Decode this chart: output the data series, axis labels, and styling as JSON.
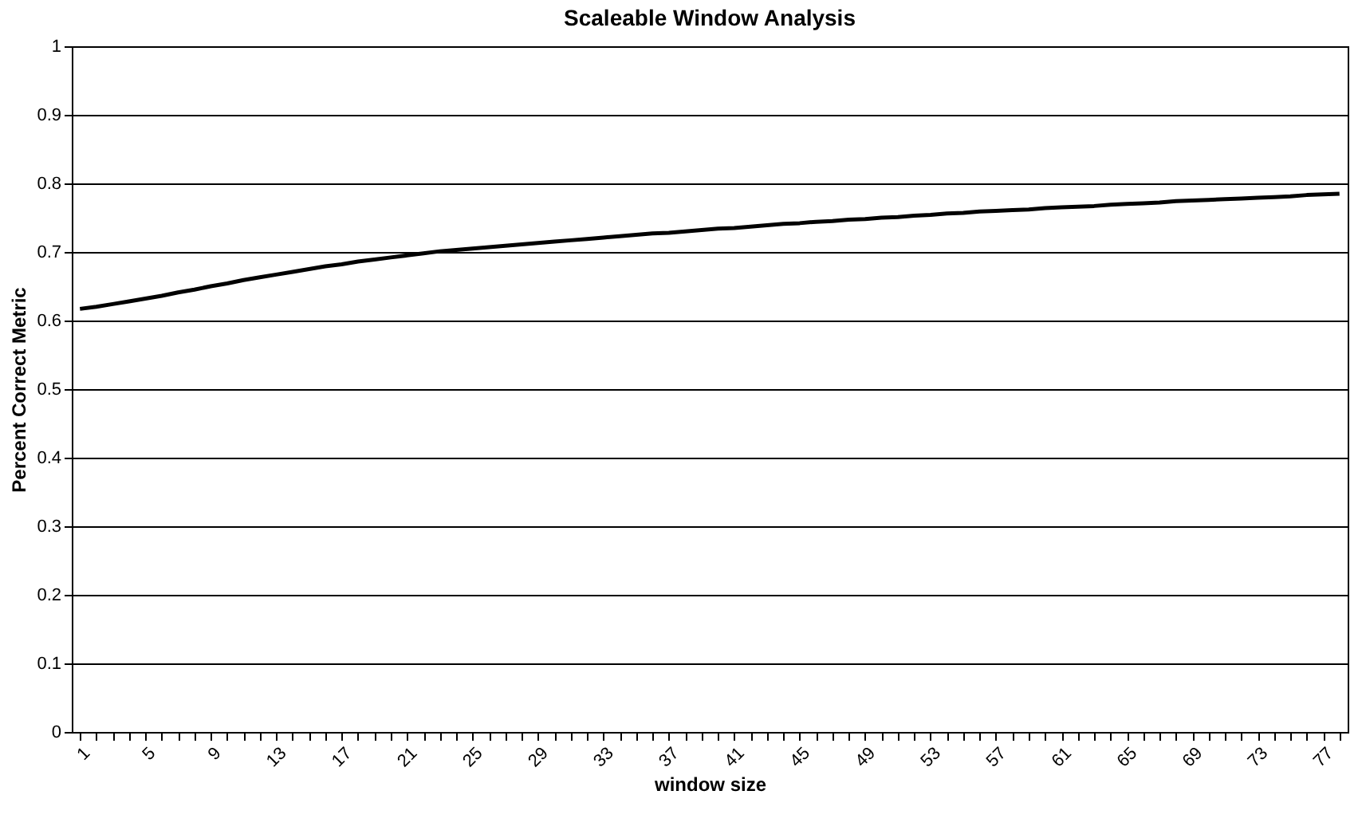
{
  "chart_data": {
    "type": "line",
    "title": "Scaleable Window Analysis",
    "xlabel": "window size",
    "ylabel": "Percent Correct Metric",
    "categories": [
      "1",
      null,
      null,
      null,
      "5",
      null,
      null,
      null,
      "9",
      null,
      null,
      null,
      "13",
      null,
      null,
      null,
      "17",
      null,
      null,
      null,
      "21",
      null,
      null,
      null,
      "25",
      null,
      null,
      null,
      "29",
      null,
      null,
      null,
      "33",
      null,
      null,
      null,
      "37",
      null,
      null,
      null,
      "41",
      null,
      null,
      null,
      "45",
      null,
      null,
      null,
      "49",
      null,
      null,
      null,
      "53",
      null,
      null,
      null,
      "57",
      null,
      null,
      null,
      "61",
      null,
      null,
      null,
      "65",
      null,
      null,
      null,
      "69",
      null,
      null,
      null,
      "73",
      null,
      null,
      null,
      "77",
      null
    ],
    "series": [
      {
        "color": "#000000",
        "values": [
          0.617,
          0.62,
          0.624,
          0.628,
          0.632,
          0.636,
          0.641,
          0.645,
          0.65,
          0.654,
          0.659,
          0.663,
          0.667,
          0.671,
          0.675,
          0.679,
          0.682,
          0.686,
          0.689,
          0.692,
          0.695,
          0.698,
          0.701,
          0.703,
          0.705,
          0.707,
          0.709,
          0.711,
          0.713,
          0.715,
          0.717,
          0.719,
          0.721,
          0.723,
          0.725,
          0.727,
          0.728,
          0.73,
          0.732,
          0.734,
          0.735,
          0.737,
          0.739,
          0.741,
          0.742,
          0.744,
          0.745,
          0.747,
          0.748,
          0.75,
          0.751,
          0.753,
          0.754,
          0.756,
          0.757,
          0.759,
          0.76,
          0.761,
          0.762,
          0.764,
          0.765,
          0.766,
          0.767,
          0.769,
          0.77,
          0.771,
          0.772,
          0.774,
          0.775,
          0.776,
          0.777,
          0.778,
          0.779,
          0.78,
          0.781,
          0.783,
          0.784,
          0.785
        ]
      }
    ],
    "ylim": [
      0,
      1
    ],
    "yticks": [
      0,
      0.1,
      0.2,
      0.3,
      0.4,
      0.5,
      0.6,
      0.7,
      0.8,
      0.9,
      1
    ],
    "grid": "y",
    "marker": "none",
    "line_style": "solid"
  }
}
